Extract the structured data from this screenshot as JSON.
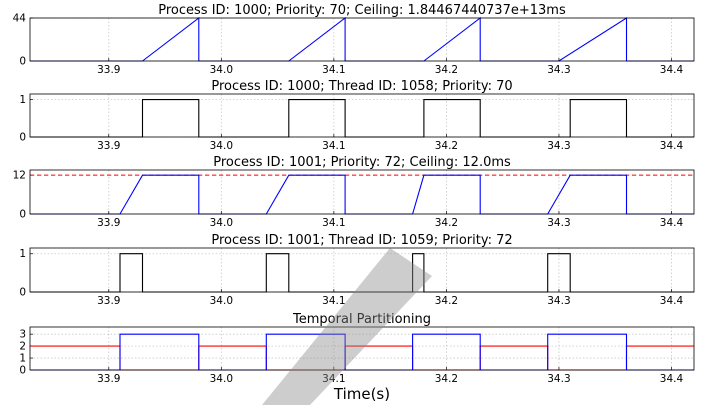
{
  "chart_data": [
    {
      "type": "line",
      "title": "Process ID: 1000; Priority: 70; Ceiling: 1.84467440737e+13ms",
      "xlim": [
        33.83,
        34.42
      ],
      "ylim": [
        0,
        44
      ],
      "yticks": [
        "0",
        "44"
      ],
      "xticks": [
        "33.9",
        "34.0",
        "34.1",
        "34.2",
        "34.3",
        "34.4"
      ],
      "grid": true,
      "series": [
        {
          "color": "#0000ff",
          "points": [
            [
              33.83,
              0
            ],
            [
              33.93,
              0
            ],
            [
              33.98,
              44
            ],
            [
              33.98,
              0
            ],
            [
              34.06,
              0
            ],
            [
              34.11,
              44
            ],
            [
              34.11,
              0
            ],
            [
              34.18,
              0
            ],
            [
              34.23,
              44
            ],
            [
              34.23,
              0
            ],
            [
              34.3,
              0
            ],
            [
              34.36,
              44
            ],
            [
              34.36,
              0
            ],
            [
              34.42,
              0
            ]
          ]
        }
      ]
    },
    {
      "type": "line",
      "title": "Process ID: 1000; Thread ID: 1058; Priority: 70",
      "xlim": [
        33.83,
        34.42
      ],
      "ylim": [
        0,
        1.15
      ],
      "yticks": [
        "0",
        "1"
      ],
      "xticks": [
        "33.9",
        "34.0",
        "34.1",
        "34.2",
        "34.3",
        "34.4"
      ],
      "grid": true,
      "series": [
        {
          "color": "#000000",
          "points": [
            [
              33.83,
              0
            ],
            [
              33.93,
              0
            ],
            [
              33.93,
              1
            ],
            [
              33.98,
              1
            ],
            [
              33.98,
              0
            ],
            [
              34.06,
              0
            ],
            [
              34.06,
              1
            ],
            [
              34.11,
              1
            ],
            [
              34.11,
              0
            ],
            [
              34.18,
              0
            ],
            [
              34.18,
              1
            ],
            [
              34.23,
              1
            ],
            [
              34.23,
              0
            ],
            [
              34.31,
              0
            ],
            [
              34.31,
              1
            ],
            [
              34.36,
              1
            ],
            [
              34.36,
              0
            ],
            [
              34.42,
              0
            ]
          ]
        }
      ]
    },
    {
      "type": "line",
      "title": "Process ID: 1001; Priority: 72; Ceiling: 12.0ms",
      "xlim": [
        33.83,
        34.42
      ],
      "ylim": [
        0,
        13.6
      ],
      "yticks": [
        "0",
        "12"
      ],
      "xticks": [
        "33.9",
        "34.0",
        "34.1",
        "34.2",
        "34.3",
        "34.4"
      ],
      "grid": true,
      "ceiling": 12,
      "series": [
        {
          "color": "#0000ff",
          "points": [
            [
              33.83,
              0
            ],
            [
              33.91,
              0
            ],
            [
              33.93,
              12
            ],
            [
              33.98,
              12
            ],
            [
              33.98,
              0
            ],
            [
              34.04,
              0
            ],
            [
              34.06,
              12
            ],
            [
              34.11,
              12
            ],
            [
              34.11,
              0
            ],
            [
              34.17,
              0
            ],
            [
              34.18,
              12
            ],
            [
              34.23,
              12
            ],
            [
              34.23,
              0
            ],
            [
              34.29,
              0
            ],
            [
              34.31,
              12
            ],
            [
              34.36,
              12
            ],
            [
              34.36,
              0
            ],
            [
              34.42,
              0
            ]
          ]
        }
      ]
    },
    {
      "type": "line",
      "title": "Process ID: 1001; Thread ID: 1059; Priority: 72",
      "xlim": [
        33.83,
        34.42
      ],
      "ylim": [
        0,
        1.15
      ],
      "yticks": [
        "0",
        "1"
      ],
      "xticks": [
        "33.9",
        "34.0",
        "34.1",
        "34.2",
        "34.3",
        "34.4"
      ],
      "grid": true,
      "series": [
        {
          "color": "#000000",
          "points": [
            [
              33.83,
              0
            ],
            [
              33.91,
              0
            ],
            [
              33.91,
              1
            ],
            [
              33.93,
              1
            ],
            [
              33.93,
              0
            ],
            [
              34.04,
              0
            ],
            [
              34.04,
              1
            ],
            [
              34.06,
              1
            ],
            [
              34.06,
              0
            ],
            [
              34.17,
              0
            ],
            [
              34.17,
              1
            ],
            [
              34.18,
              1
            ],
            [
              34.18,
              0
            ],
            [
              34.29,
              0
            ],
            [
              34.29,
              1
            ],
            [
              34.31,
              1
            ],
            [
              34.31,
              0
            ],
            [
              34.42,
              0
            ]
          ]
        }
      ]
    },
    {
      "type": "line",
      "title": "Temporal Partitioning",
      "xlim": [
        33.83,
        34.42
      ],
      "ylim": [
        0,
        3.6
      ],
      "yticks": [
        "0",
        "1",
        "2",
        "3"
      ],
      "xticks": [
        "33.9",
        "34.0",
        "34.1",
        "34.2",
        "34.3",
        "34.4"
      ],
      "xlabel": "Time(s)",
      "grid": true,
      "series": [
        {
          "color": "#ff0000",
          "points": [
            [
              33.83,
              2
            ],
            [
              33.91,
              2
            ],
            [
              33.91,
              0
            ],
            [
              33.98,
              0
            ],
            [
              33.98,
              2
            ],
            [
              34.04,
              2
            ],
            [
              34.04,
              0
            ],
            [
              34.11,
              0
            ],
            [
              34.11,
              2
            ],
            [
              34.17,
              2
            ],
            [
              34.17,
              0
            ],
            [
              34.23,
              0
            ],
            [
              34.23,
              2
            ],
            [
              34.29,
              2
            ],
            [
              34.29,
              0
            ],
            [
              34.36,
              0
            ],
            [
              34.36,
              2
            ],
            [
              34.42,
              2
            ]
          ]
        },
        {
          "color": "#0000ff",
          "points": [
            [
              33.83,
              0
            ],
            [
              33.91,
              0
            ],
            [
              33.91,
              3
            ],
            [
              33.98,
              3
            ],
            [
              33.98,
              0
            ],
            [
              34.04,
              0
            ],
            [
              34.04,
              3
            ],
            [
              34.11,
              3
            ],
            [
              34.11,
              0
            ],
            [
              34.17,
              0
            ],
            [
              34.17,
              3
            ],
            [
              34.23,
              3
            ],
            [
              34.23,
              0
            ],
            [
              34.29,
              0
            ],
            [
              34.29,
              3
            ],
            [
              34.36,
              3
            ],
            [
              34.36,
              0
            ],
            [
              34.42,
              0
            ]
          ]
        }
      ]
    }
  ]
}
